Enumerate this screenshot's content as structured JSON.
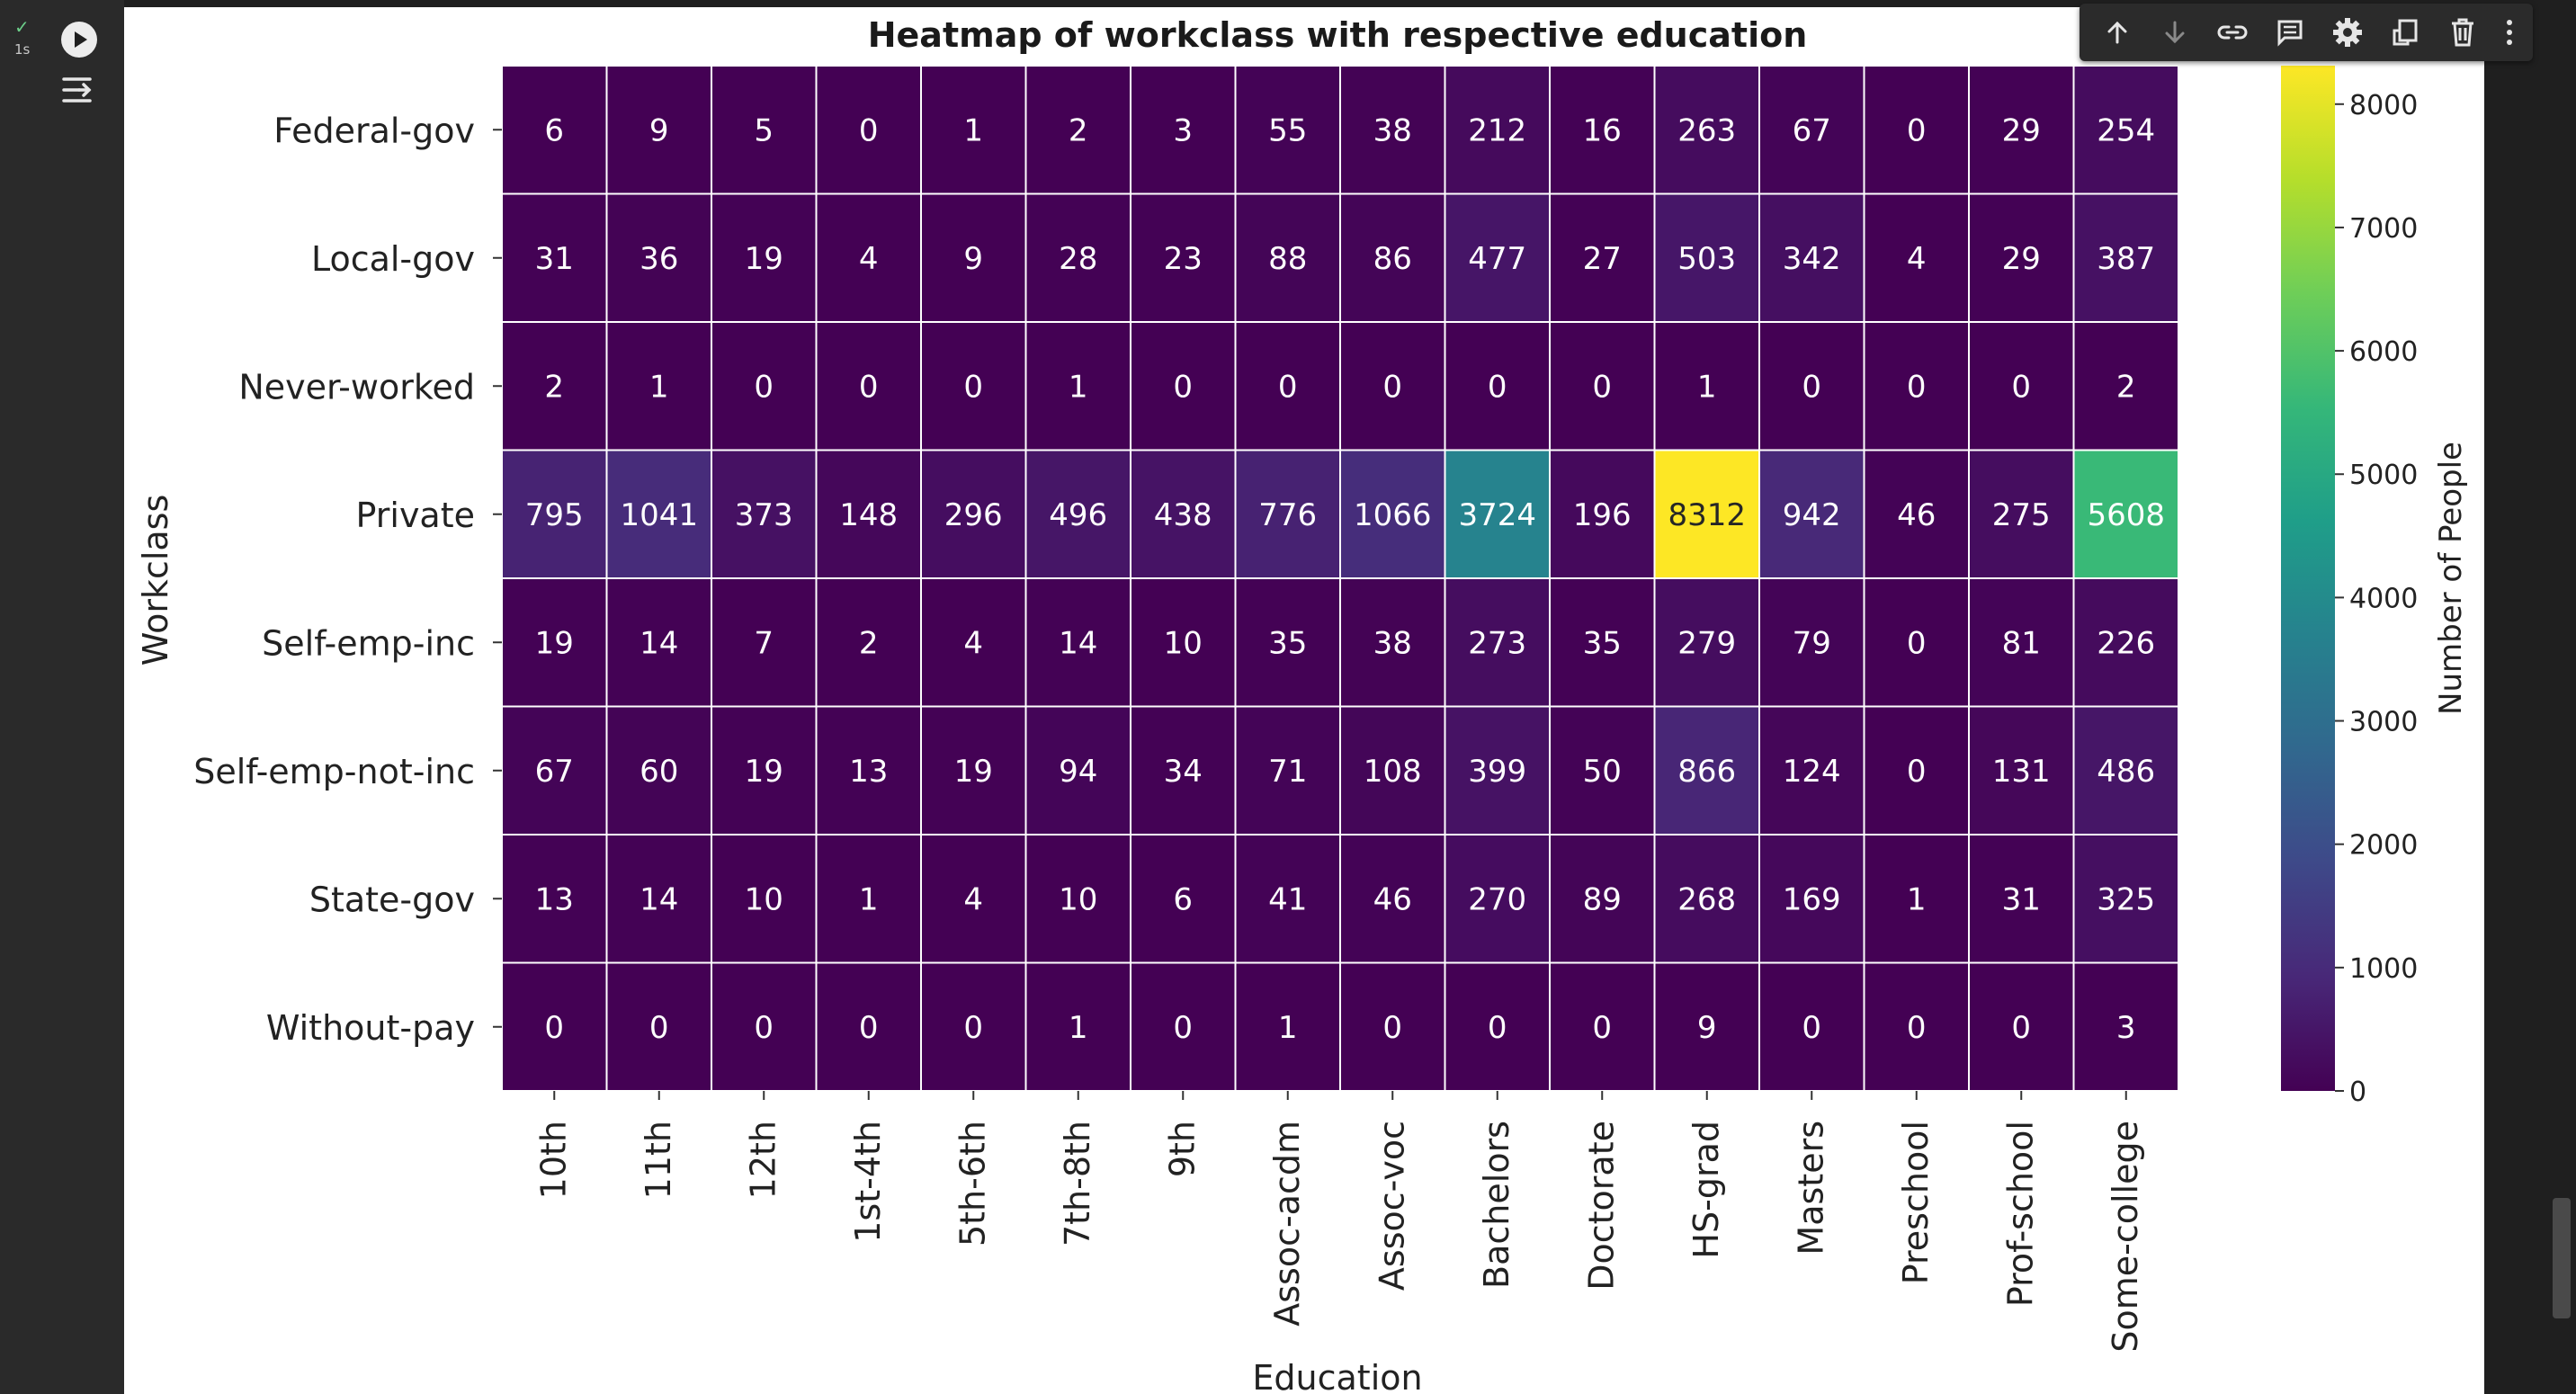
{
  "cell": {
    "status_icon": "check-icon",
    "exec_time": "1s",
    "run_icon": "play-icon",
    "menu_icon": "output-menu-icon"
  },
  "toolbar": {
    "icons": [
      "arrow-up-icon",
      "arrow-down-icon",
      "link-icon",
      "comment-icon",
      "gear-icon",
      "mirror-cell-icon",
      "trash-icon",
      "more-vert-icon"
    ]
  },
  "colors": {
    "page_bg": "#1f1f1f",
    "plot_bg": "#ffffff",
    "colormap": "viridis",
    "colormap_stops": [
      "#440154",
      "#482878",
      "#3e4989",
      "#31688e",
      "#26828e",
      "#1f9e89",
      "#35b779",
      "#6ece58",
      "#b5de2b",
      "#fde725"
    ]
  },
  "chart_data": {
    "type": "heatmap",
    "title": "Heatmap of workclass with respective education",
    "xlabel": "Education",
    "ylabel": "Workclass",
    "x": [
      "10th",
      "11th",
      "12th",
      "1st-4th",
      "5th-6th",
      "7th-8th",
      "9th",
      "Assoc-acdm",
      "Assoc-voc",
      "Bachelors",
      "Doctorate",
      "HS-grad",
      "Masters",
      "Preschool",
      "Prof-school",
      "Some-college"
    ],
    "y": [
      "Federal-gov",
      "Local-gov",
      "Never-worked",
      "Private",
      "Self-emp-inc",
      "Self-emp-not-inc",
      "State-gov",
      "Without-pay"
    ],
    "values": [
      [
        6,
        9,
        5,
        0,
        1,
        2,
        3,
        55,
        38,
        212,
        16,
        263,
        67,
        0,
        29,
        254
      ],
      [
        31,
        36,
        19,
        4,
        9,
        28,
        23,
        88,
        86,
        477,
        27,
        503,
        342,
        4,
        29,
        387
      ],
      [
        2,
        1,
        0,
        0,
        0,
        1,
        0,
        0,
        0,
        0,
        0,
        1,
        0,
        0,
        0,
        2
      ],
      [
        795,
        1041,
        373,
        148,
        296,
        496,
        438,
        776,
        1066,
        3724,
        196,
        8312,
        942,
        46,
        275,
        5608
      ],
      [
        19,
        14,
        7,
        2,
        4,
        14,
        10,
        35,
        38,
        273,
        35,
        279,
        79,
        0,
        81,
        226
      ],
      [
        67,
        60,
        19,
        13,
        19,
        94,
        34,
        71,
        108,
        399,
        50,
        866,
        124,
        0,
        131,
        486
      ],
      [
        13,
        14,
        10,
        1,
        4,
        10,
        6,
        41,
        46,
        270,
        89,
        268,
        169,
        1,
        31,
        325
      ],
      [
        0,
        0,
        0,
        0,
        0,
        1,
        0,
        1,
        0,
        0,
        0,
        9,
        0,
        0,
        0,
        3
      ]
    ],
    "colorbar": {
      "label": "Number of People",
      "range": [
        0,
        8312
      ],
      "ticks": [
        0,
        1000,
        2000,
        3000,
        4000,
        5000,
        6000,
        7000,
        8000
      ]
    },
    "annotated": true,
    "grid": false,
    "legend": "colorbar-right"
  }
}
